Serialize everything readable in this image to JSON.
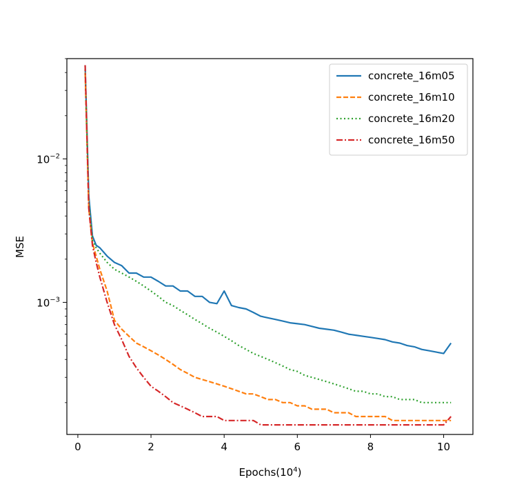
{
  "chart_data": {
    "type": "line",
    "title": "",
    "xlabel": "Epochs(10",
    "xlabel_sup": "4",
    "xlabel_close": ")",
    "ylabel": "MSE",
    "yscale": "log",
    "xlim": [
      -0.3,
      10.8
    ],
    "ylim": [
      0.00012,
      0.05
    ],
    "x_ticks": [
      0,
      2,
      4,
      6,
      8,
      10
    ],
    "x_tick_labels": [
      "0",
      "2",
      "4",
      "6",
      "8",
      "10"
    ],
    "y_major_ticks": [
      0.001,
      0.01
    ],
    "y_tick_labels": [
      {
        "base": "10",
        "exp": "−3"
      },
      {
        "base": "10",
        "exp": "−2"
      }
    ],
    "legend_position": "top-right",
    "series": [
      {
        "name": "concrete_16m05",
        "color": "#1f77b4",
        "dash": "solid",
        "x": [
          0.2,
          0.3,
          0.4,
          0.5,
          0.6,
          0.8,
          1.0,
          1.2,
          1.4,
          1.6,
          1.8,
          2.0,
          2.2,
          2.4,
          2.6,
          2.8,
          3.0,
          3.2,
          3.4,
          3.6,
          3.8,
          4.0,
          4.2,
          4.4,
          4.6,
          4.8,
          5.0,
          5.2,
          5.4,
          5.6,
          5.8,
          6.0,
          6.2,
          6.4,
          6.6,
          6.8,
          7.0,
          7.2,
          7.4,
          7.6,
          7.8,
          8.0,
          8.2,
          8.4,
          8.6,
          8.8,
          9.0,
          9.2,
          9.4,
          9.6,
          9.8,
          10.0,
          10.2
        ],
        "y": [
          0.045,
          0.0055,
          0.0029,
          0.0025,
          0.0024,
          0.0021,
          0.0019,
          0.0018,
          0.0016,
          0.0016,
          0.0015,
          0.0015,
          0.0014,
          0.0013,
          0.0013,
          0.0012,
          0.0012,
          0.0011,
          0.0011,
          0.001,
          0.00098,
          0.0012,
          0.00095,
          0.00092,
          0.0009,
          0.00085,
          0.0008,
          0.00078,
          0.00076,
          0.00074,
          0.00072,
          0.00071,
          0.0007,
          0.00068,
          0.00066,
          0.00065,
          0.00064,
          0.00062,
          0.0006,
          0.00059,
          0.00058,
          0.00057,
          0.00056,
          0.00055,
          0.00053,
          0.00052,
          0.0005,
          0.00049,
          0.00047,
          0.00046,
          0.00045,
          0.00044,
          0.00052
        ]
      },
      {
        "name": "concrete_16m10",
        "color": "#ff7f0e",
        "dash": "dashed",
        "x": [
          0.2,
          0.3,
          0.4,
          0.5,
          0.6,
          0.8,
          1.0,
          1.2,
          1.4,
          1.6,
          1.8,
          2.0,
          2.2,
          2.4,
          2.6,
          2.8,
          3.0,
          3.2,
          3.4,
          3.6,
          3.8,
          4.0,
          4.2,
          4.4,
          4.6,
          4.8,
          5.0,
          5.2,
          5.4,
          5.6,
          5.8,
          6.0,
          6.2,
          6.4,
          6.6,
          6.8,
          7.0,
          7.2,
          7.4,
          7.6,
          7.8,
          8.0,
          8.2,
          8.4,
          8.6,
          8.8,
          9.0,
          9.2,
          9.4,
          9.6,
          9.8,
          10.0,
          10.2
        ],
        "y": [
          0.04,
          0.0045,
          0.0026,
          0.0021,
          0.0017,
          0.0012,
          0.00075,
          0.00065,
          0.00058,
          0.00052,
          0.00049,
          0.00046,
          0.00043,
          0.0004,
          0.00037,
          0.00034,
          0.00032,
          0.0003,
          0.00029,
          0.00028,
          0.00027,
          0.00026,
          0.00025,
          0.00024,
          0.00023,
          0.00023,
          0.00022,
          0.00021,
          0.00021,
          0.0002,
          0.0002,
          0.00019,
          0.00019,
          0.00018,
          0.00018,
          0.00018,
          0.00017,
          0.00017,
          0.00017,
          0.00016,
          0.00016,
          0.00016,
          0.00016,
          0.00016,
          0.00015,
          0.00015,
          0.00015,
          0.00015,
          0.00015,
          0.00015,
          0.00015,
          0.00015,
          0.00015
        ]
      },
      {
        "name": "concrete_16m20",
        "color": "#2ca02c",
        "dash": "dotted",
        "x": [
          0.2,
          0.3,
          0.4,
          0.5,
          0.6,
          0.8,
          1.0,
          1.2,
          1.4,
          1.6,
          1.8,
          2.0,
          2.2,
          2.4,
          2.6,
          2.8,
          3.0,
          3.2,
          3.4,
          3.6,
          3.8,
          4.0,
          4.2,
          4.4,
          4.6,
          4.8,
          5.0,
          5.2,
          5.4,
          5.6,
          5.8,
          6.0,
          6.2,
          6.4,
          6.6,
          6.8,
          7.0,
          7.2,
          7.4,
          7.6,
          7.8,
          8.0,
          8.2,
          8.4,
          8.6,
          8.8,
          9.0,
          9.2,
          9.4,
          9.6,
          9.8,
          10.0,
          10.2
        ],
        "y": [
          0.042,
          0.005,
          0.0027,
          0.0024,
          0.0022,
          0.0019,
          0.0017,
          0.0016,
          0.0015,
          0.0014,
          0.0013,
          0.0012,
          0.0011,
          0.001,
          0.00095,
          0.00088,
          0.00082,
          0.00076,
          0.00071,
          0.00066,
          0.00062,
          0.00058,
          0.00054,
          0.0005,
          0.00047,
          0.00044,
          0.00042,
          0.0004,
          0.00038,
          0.00036,
          0.00034,
          0.00033,
          0.00031,
          0.0003,
          0.00029,
          0.00028,
          0.00027,
          0.00026,
          0.00025,
          0.00024,
          0.00024,
          0.00023,
          0.00023,
          0.00022,
          0.00022,
          0.00021,
          0.00021,
          0.00021,
          0.0002,
          0.0002,
          0.0002,
          0.0002,
          0.0002
        ]
      },
      {
        "name": "concrete_16m50",
        "color": "#d62728",
        "dash": "dashdot",
        "x": [
          0.2,
          0.3,
          0.4,
          0.5,
          0.6,
          0.8,
          1.0,
          1.2,
          1.4,
          1.6,
          1.8,
          2.0,
          2.2,
          2.4,
          2.6,
          2.8,
          3.0,
          3.2,
          3.4,
          3.6,
          3.8,
          4.0,
          4.2,
          4.4,
          4.6,
          4.8,
          5.0,
          5.2,
          5.4,
          5.6,
          5.8,
          6.0,
          6.2,
          6.4,
          6.6,
          6.8,
          7.0,
          7.2,
          7.4,
          7.6,
          7.8,
          8.0,
          8.2,
          8.4,
          8.6,
          8.8,
          9.0,
          9.2,
          9.4,
          9.6,
          9.8,
          10.0,
          10.2
        ],
        "y": [
          0.045,
          0.0045,
          0.0025,
          0.0019,
          0.0015,
          0.001,
          0.0007,
          0.00055,
          0.00042,
          0.00035,
          0.0003,
          0.00026,
          0.00024,
          0.00022,
          0.0002,
          0.00019,
          0.00018,
          0.00017,
          0.00016,
          0.00016,
          0.00016,
          0.00015,
          0.00015,
          0.00015,
          0.00015,
          0.00015,
          0.00014,
          0.00014,
          0.00014,
          0.00014,
          0.00014,
          0.00014,
          0.00014,
          0.00014,
          0.00014,
          0.00014,
          0.00014,
          0.00014,
          0.00014,
          0.00014,
          0.00014,
          0.00014,
          0.00014,
          0.00014,
          0.00014,
          0.00014,
          0.00014,
          0.00014,
          0.00014,
          0.00014,
          0.00014,
          0.00014,
          0.00016
        ]
      }
    ]
  }
}
